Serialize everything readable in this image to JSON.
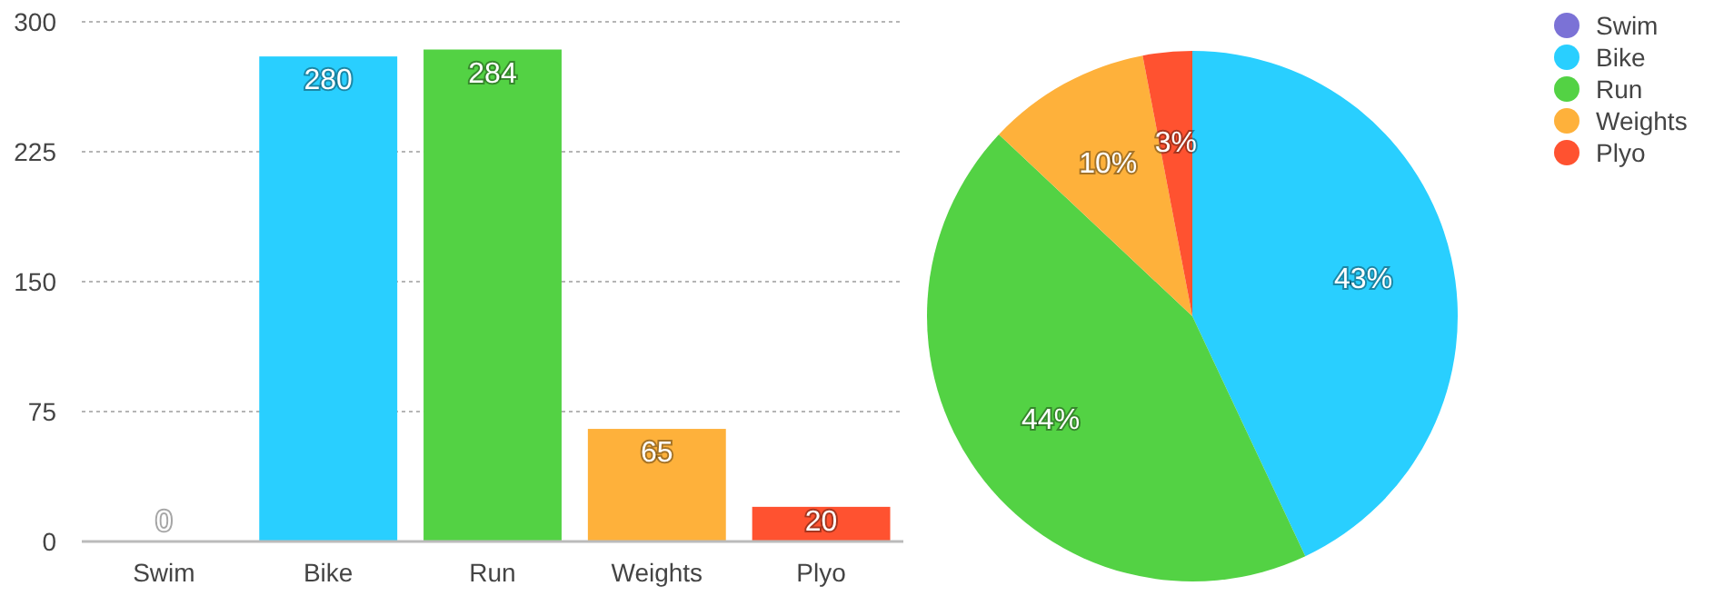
{
  "chart_data": [
    {
      "type": "bar",
      "categories": [
        "Swim",
        "Bike",
        "Run",
        "Weights",
        "Plyo"
      ],
      "values": [
        0,
        280,
        284,
        65,
        20
      ],
      "colors": [
        "#7b72d6",
        "#29cfff",
        "#53d244",
        "#feb13b",
        "#ff5230"
      ],
      "ylim": [
        0,
        300
      ],
      "yticks": [
        0,
        75,
        150,
        225,
        300
      ],
      "grid": "y",
      "data_labels": true
    },
    {
      "type": "pie",
      "categories": [
        "Swim",
        "Bike",
        "Run",
        "Weights",
        "Plyo"
      ],
      "values": [
        0,
        43,
        44,
        10,
        3
      ],
      "colors": [
        "#7b72d6",
        "#29cfff",
        "#53d244",
        "#feb13b",
        "#ff5230"
      ],
      "value_labels": [
        null,
        "43%",
        "44%",
        "10%",
        "3%"
      ],
      "legend": "top right"
    }
  ]
}
